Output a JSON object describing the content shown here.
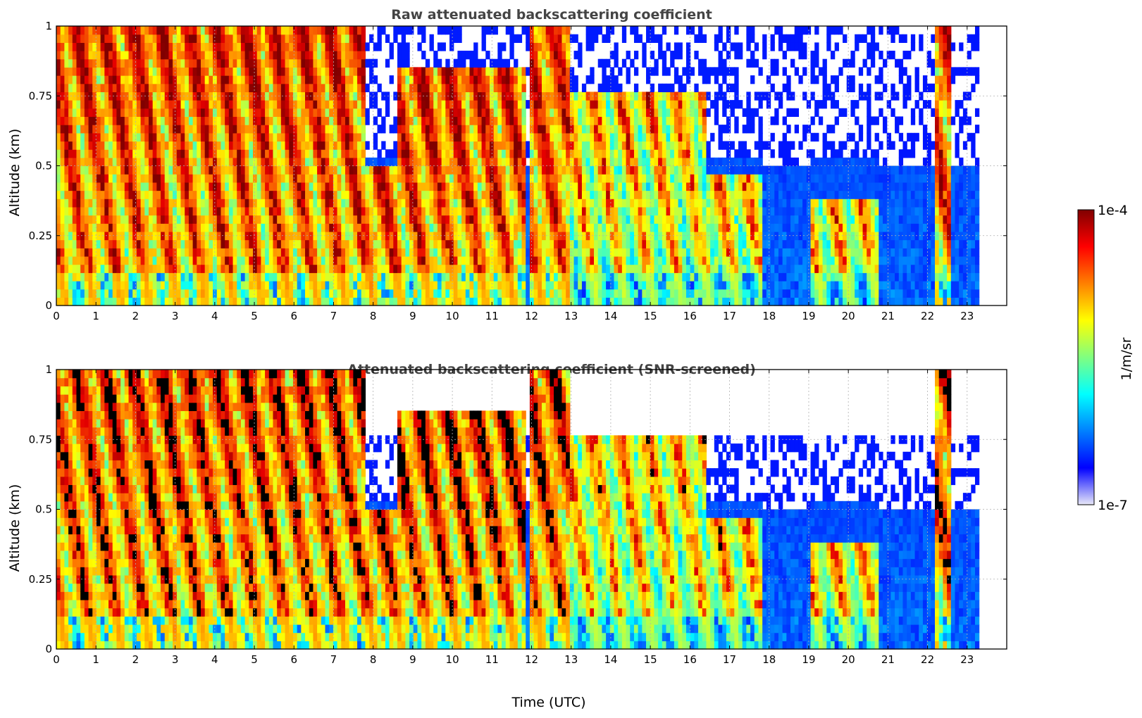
{
  "chart_data": [
    {
      "type": "heatmap",
      "title": "Raw attenuated backscattering coefficient",
      "xlabel": "",
      "ylabel": "Altitude (km)",
      "xlim": [
        0,
        24
      ],
      "ylim": [
        0,
        1
      ],
      "x_ticks": [
        "0",
        "1",
        "2",
        "3",
        "4",
        "5",
        "6",
        "7",
        "8",
        "9",
        "10",
        "11",
        "12",
        "13",
        "14",
        "15",
        "16",
        "17",
        "18",
        "19",
        "20",
        "21",
        "22",
        "23"
      ],
      "y_ticks": [
        "0",
        "0.25",
        "0.5",
        "0.75",
        "1"
      ],
      "grid": true,
      "data_end_hour": 23.3,
      "colormap": "jet",
      "colorbar_label": "1/m/sr",
      "colorbar_min": "1e-7",
      "colorbar_max": "1e-4",
      "cloud_periods": [
        {
          "start": 0.0,
          "end": 7.8,
          "top": 1.0,
          "intensity": "high"
        },
        {
          "start": 7.8,
          "end": 8.6,
          "top": 0.5,
          "intensity": "high"
        },
        {
          "start": 8.6,
          "end": 11.9,
          "top": 0.85,
          "intensity": "high"
        },
        {
          "start": 12.0,
          "end": 13.0,
          "top": 1.0,
          "intensity": "high"
        },
        {
          "start": 13.0,
          "end": 16.4,
          "top": 0.75,
          "intensity": "medium"
        },
        {
          "start": 16.4,
          "end": 17.8,
          "top": 0.45,
          "intensity": "medium"
        },
        {
          "start": 19.0,
          "end": 20.8,
          "top": 0.38,
          "intensity": "medium"
        },
        {
          "start": 22.2,
          "end": 22.6,
          "top": 1.0,
          "intensity": "high"
        }
      ]
    },
    {
      "type": "heatmap",
      "title": "Attenuated backscattering coefficient (SNR-screened)",
      "xlabel": "Time (UTC)",
      "ylabel": "Altitude (km)",
      "xlim": [
        0,
        24
      ],
      "ylim": [
        0,
        1
      ],
      "x_ticks": [
        "0",
        "1",
        "2",
        "3",
        "4",
        "5",
        "6",
        "7",
        "8",
        "9",
        "10",
        "11",
        "12",
        "13",
        "14",
        "15",
        "16",
        "17",
        "18",
        "19",
        "20",
        "21",
        "22",
        "23"
      ],
      "y_ticks": [
        "0",
        "0.25",
        "0.5",
        "0.75",
        "1"
      ],
      "grid": true,
      "data_end_hour": 23.3,
      "colormap": "jet",
      "colorbar_label": "1/m/sr",
      "colorbar_min": "1e-7",
      "colorbar_max": "1e-4",
      "screened": true
    }
  ],
  "colorbar": {
    "label": "1/m/sr",
    "max_label": "1e-4",
    "min_label": "1e-7",
    "stops": [
      "#e8e8f8",
      "#0000ff",
      "#0080ff",
      "#00ffff",
      "#80ff80",
      "#ffff00",
      "#ff8000",
      "#ff0000",
      "#800000"
    ]
  }
}
